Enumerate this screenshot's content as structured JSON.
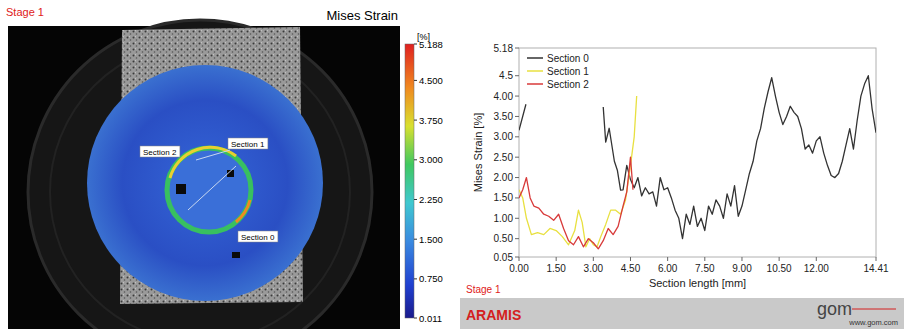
{
  "chart_data": [
    {
      "type": "image",
      "title": "Mises Strain",
      "annotations": [
        "Stage 1",
        "Section 2",
        "Section 1",
        "Section 0"
      ],
      "colorbar": {
        "label": "[%]",
        "range": [
          0.011,
          5.188
        ],
        "ticks": [
          5.188,
          {
            "value": 4.5,
            "label": "4.500"
          },
          {
            "value": 3.75,
            "label": "3.750"
          },
          {
            "value": 3,
            "label": "3.000"
          },
          {
            "value": 2.25,
            "label": "2.250"
          },
          {
            "value": 1.5,
            "label": "1.500"
          },
          {
            "value": 0.75,
            "label": "0.750"
          },
          0.011
        ]
      }
    },
    {
      "type": "line",
      "xlabel": "Section length [mm]",
      "ylabel": "Mises Strain [%]",
      "xlim": [
        0,
        14.41
      ],
      "ylim": [
        0.05,
        5.18
      ],
      "xticks": [
        {
          "value": 0,
          "label": "0.00"
        },
        {
          "value": 1.5,
          "label": "1.50"
        },
        {
          "value": 3,
          "label": "3.00"
        },
        {
          "value": 4.5,
          "label": "4.50"
        },
        {
          "value": 6,
          "label": "6.00"
        },
        {
          "value": 7.5,
          "label": "7.50"
        },
        {
          "value": 9,
          "label": "9.00"
        },
        {
          "value": 10.5,
          "label": "10.50"
        },
        {
          "value": 12,
          "label": "12.00"
        },
        14.41
      ],
      "yticks": [
        0.05,
        {
          "value": 0.5,
          "label": "0.50"
        },
        {
          "value": 1,
          "label": "1.00"
        },
        {
          "value": 1.5,
          "label": "1.50"
        },
        {
          "value": 2,
          "label": "2.00"
        },
        {
          "value": 2.5,
          "label": "2.50"
        },
        {
          "value": 3,
          "label": "3.00"
        },
        {
          "value": 3.5,
          "label": "3.50"
        },
        {
          "value": 4,
          "label": "4.00"
        },
        4.5,
        5.18
      ],
      "grid": false,
      "legend": "top-left",
      "series": [
        {
          "name": "Section 0",
          "color": "#333333",
          "x": [
            0,
            0.28,
            1.8,
            3.4,
            3.5,
            3.64,
            3.85,
            3.97,
            4.1,
            4.2,
            4.35,
            4.5,
            4.65,
            4.8,
            4.95,
            5.1,
            5.25,
            5.4,
            5.55,
            5.7,
            5.85,
            6.0,
            6.15,
            6.3,
            6.45,
            6.6,
            6.75,
            6.9,
            7.05,
            7.2,
            7.35,
            7.5,
            7.65,
            7.8,
            7.95,
            8.1,
            8.25,
            8.4,
            8.55,
            8.7,
            8.85,
            9.0,
            9.15,
            9.3,
            9.45,
            9.6,
            9.75,
            9.9,
            10.05,
            10.2,
            10.35,
            10.5,
            10.65,
            10.8,
            10.95,
            11.1,
            11.25,
            11.4,
            11.55,
            11.7,
            11.85,
            12.0,
            12.15,
            12.3,
            12.45,
            12.6,
            12.75,
            12.9,
            13.05,
            13.2,
            13.35,
            13.5,
            13.65,
            13.8,
            13.95,
            14.1,
            14.25,
            14.41
          ],
          "values": [
            3.16,
            3.8,
            null,
            3.73,
            2.87,
            3.21,
            2.4,
            2.18,
            1.69,
            1.7,
            2.3,
            1.95,
            1.75,
            2.0,
            1.55,
            1.75,
            1.6,
            1.65,
            1.3,
            2.0,
            1.7,
            1.75,
            1.5,
            1.2,
            1.0,
            0.5,
            1.1,
            0.85,
            1.3,
            0.8,
            1.0,
            0.7,
            1.3,
            1.1,
            1.45,
            1.3,
            1.0,
            1.6,
            1.3,
            1.8,
            1.05,
            1.3,
            1.7,
            2.1,
            2.4,
            2.9,
            3.2,
            3.7,
            4.1,
            4.45,
            4.0,
            3.6,
            3.3,
            3.5,
            3.75,
            3.6,
            3.5,
            3.2,
            2.7,
            2.8,
            2.6,
            2.9,
            3.0,
            2.6,
            2.3,
            2.05,
            2.0,
            2.1,
            2.4,
            2.8,
            3.2,
            2.7,
            3.4,
            4.0,
            4.3,
            4.5,
            3.7,
            3.1
          ]
        },
        {
          "name": "Section 1",
          "color": "#e8e040",
          "x": [
            0,
            0.15,
            0.3,
            0.5,
            0.75,
            1.0,
            1.25,
            1.5,
            1.75,
            2.0,
            2.25,
            2.4,
            2.55,
            2.7,
            2.85,
            3.0,
            3.15,
            3.3,
            3.5,
            3.7,
            3.9,
            4.1,
            4.3,
            4.5,
            4.65,
            4.75
          ],
          "values": [
            1.7,
            1.5,
            1.0,
            0.6,
            0.65,
            0.6,
            0.75,
            0.7,
            0.55,
            0.35,
            0.7,
            1.2,
            0.9,
            0.3,
            0.5,
            0.35,
            0.3,
            0.55,
            0.85,
            1.2,
            1.2,
            1.1,
            1.45,
            2.3,
            3.0,
            4.0
          ]
        },
        {
          "name": "Section 2",
          "color": "#d83a3a",
          "x": [
            0,
            0.15,
            0.3,
            0.45,
            0.6,
            0.8,
            1.0,
            1.2,
            1.4,
            1.6,
            1.8,
            2.0,
            2.2,
            2.4,
            2.6,
            2.8,
            3.0,
            3.2,
            3.4,
            3.6,
            3.8,
            4.0,
            4.2,
            4.35,
            4.5,
            4.6
          ],
          "values": [
            1.5,
            1.7,
            2.0,
            1.5,
            1.3,
            1.25,
            1.1,
            1.05,
            0.95,
            1.1,
            0.75,
            0.45,
            0.35,
            0.55,
            0.3,
            0.5,
            0.4,
            0.25,
            0.45,
            0.75,
            0.6,
            0.8,
            1.3,
            1.65,
            2.5,
            1.7
          ]
        }
      ],
      "annotations": [
        "Stage 1",
        "ARAMIS",
        "gom",
        "www.gom.com"
      ]
    }
  ]
}
